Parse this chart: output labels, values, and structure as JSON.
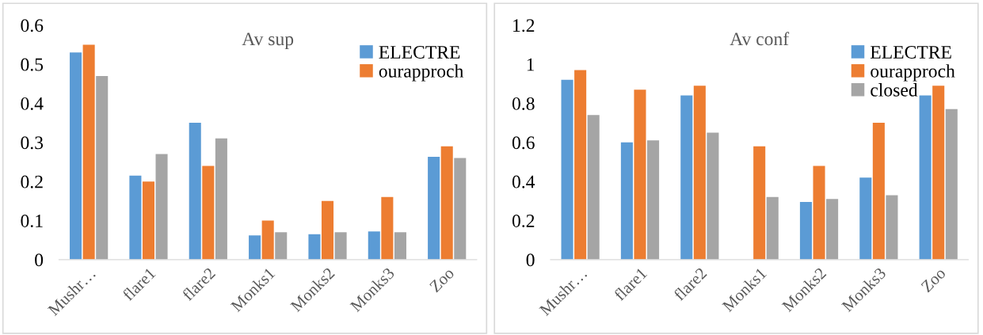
{
  "chart_data": [
    {
      "type": "bar",
      "title": "Av sup",
      "categories": [
        "Mushr…",
        "flare1",
        "flare2",
        "Monks1",
        "Monks2",
        "Monks3",
        "Zoo"
      ],
      "ylim": [
        0,
        0.6
      ],
      "yticks": [
        0,
        0.1,
        0.2,
        0.3,
        0.4,
        0.5,
        0.6
      ],
      "grid": false,
      "legend": "top right",
      "series": [
        {
          "name": "ELECTRE",
          "color": "#5b9bd5",
          "values": [
            0.53,
            0.215,
            0.35,
            0.062,
            0.065,
            0.072,
            0.263
          ]
        },
        {
          "name": "ourapproch",
          "color": "#ed7d31",
          "values": [
            0.55,
            0.2,
            0.24,
            0.1,
            0.15,
            0.16,
            0.29
          ]
        },
        {
          "color": "#a5a5a5",
          "values": [
            0.47,
            0.27,
            0.31,
            0.07,
            0.07,
            0.07,
            0.26
          ]
        }
      ]
    },
    {
      "type": "bar",
      "title": "Av conf",
      "categories": [
        "Mushr…",
        "flare1",
        "flare2",
        "Monks1",
        "Monks2",
        "Monks3",
        "Zoo"
      ],
      "ylim": [
        0,
        1.2
      ],
      "yticks": [
        0,
        0.2,
        0.4,
        0.6,
        0.8,
        {
          "value": 1,
          "label": "1"
        },
        1.2
      ],
      "grid": false,
      "legend": "top right",
      "series": [
        {
          "name": "ELECTRE",
          "color": "#5b9bd5",
          "values": [
            0.92,
            0.6,
            0.84,
            0,
            0.295,
            0.42,
            0.84
          ]
        },
        {
          "name": "ourapproch",
          "color": "#ed7d31",
          "values": [
            0.97,
            0.87,
            0.89,
            0.58,
            0.48,
            0.7,
            0.89
          ]
        },
        {
          "name": "closed",
          "color": "#a5a5a5",
          "values": [
            0.74,
            0.61,
            0.65,
            0.32,
            0.31,
            0.33,
            0.77
          ]
        }
      ]
    }
  ]
}
